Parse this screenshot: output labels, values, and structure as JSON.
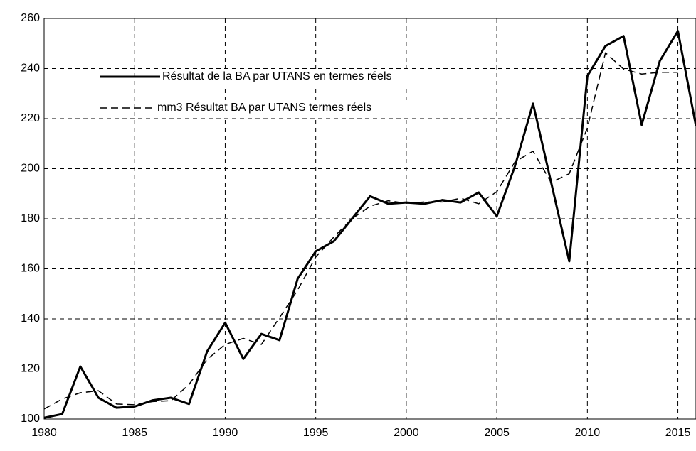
{
  "chart_data": {
    "type": "line",
    "x": [
      1980,
      1981,
      1982,
      1983,
      1984,
      1985,
      1986,
      1987,
      1988,
      1989,
      1990,
      1991,
      1992,
      1993,
      1994,
      1995,
      1996,
      1997,
      1998,
      1999,
      2000,
      2001,
      2002,
      2003,
      2004,
      2005,
      2006,
      2007,
      2008,
      2009,
      2010,
      2011,
      2012,
      2013,
      2014,
      2015,
      2016
    ],
    "series": [
      {
        "name": "Résultat de la BA par UTANS en termes réels",
        "color": "#000000",
        "style": "solid",
        "values": [
          100.5,
          102,
          121,
          108.5,
          104.5,
          105,
          107.5,
          108.5,
          106,
          127,
          138.5,
          124,
          134,
          131.5,
          156,
          167,
          171,
          180,
          189,
          186,
          186.5,
          186,
          187.5,
          186.5,
          190.5,
          181,
          201,
          226,
          194.5,
          163,
          237,
          249,
          253,
          217.5,
          243,
          255,
          217
        ]
      },
      {
        "name": "mm3 Résultat BA par UTANS termes réels",
        "color": "#000000",
        "style": "dashed",
        "values": [
          104,
          108,
          110.5,
          111.3,
          106,
          105.7,
          107,
          107.3,
          113.8,
          123.8,
          129.8,
          132.2,
          129.8,
          140.5,
          151.5,
          164.7,
          172.7,
          180,
          185,
          187.2,
          186.2,
          186.7,
          186.7,
          188.2,
          186,
          190.8,
          202.7,
          207,
          194.5,
          198,
          216.3,
          246.3,
          239.8,
          237.8,
          238.5,
          238.5,
          null
        ]
      }
    ],
    "xlim": [
      1980,
      2016
    ],
    "xticks": [
      1980,
      1985,
      1990,
      1995,
      2000,
      2005,
      2010,
      2015
    ],
    "ylim": [
      100,
      260
    ],
    "yticks": [
      100,
      120,
      140,
      160,
      180,
      200,
      220,
      240,
      260
    ],
    "grid": true
  }
}
